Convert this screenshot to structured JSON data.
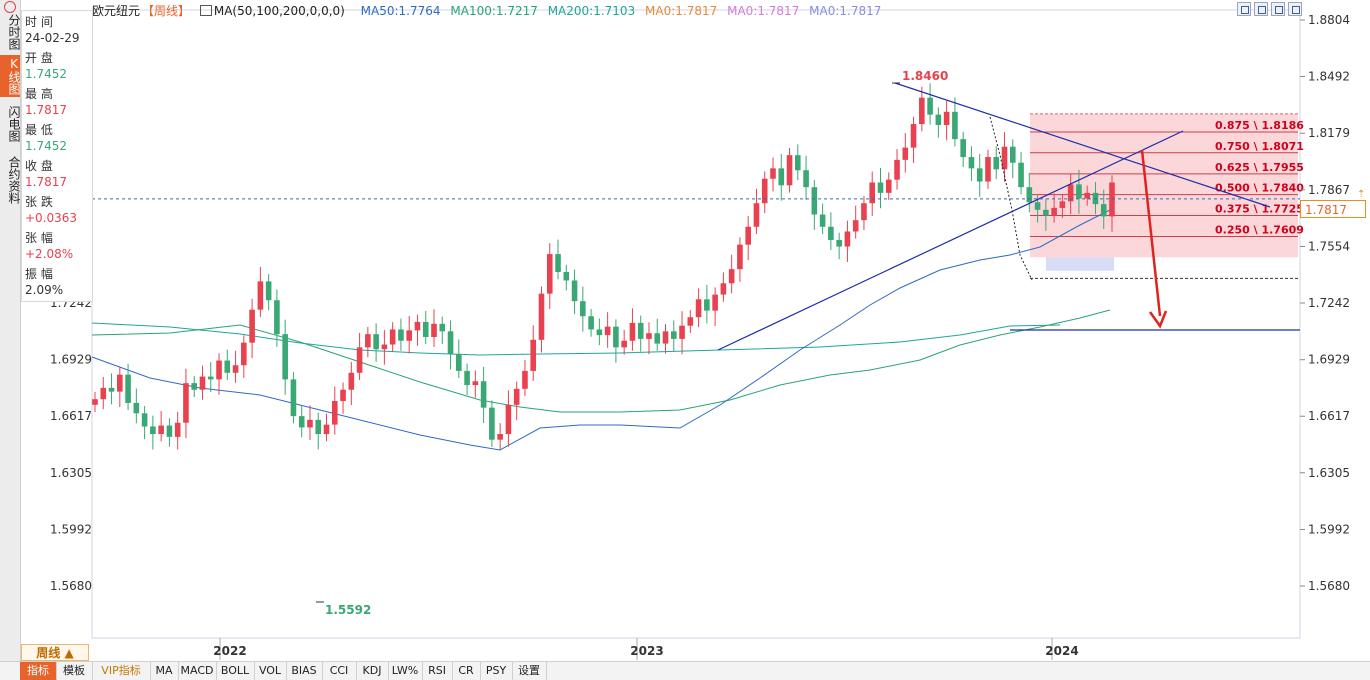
{
  "sidebar": {
    "tabs": [
      {
        "label": "分时图",
        "active": false
      },
      {
        "label": "K线图",
        "active": true
      },
      {
        "label": "闪电图",
        "active": false
      },
      {
        "label": "合约资料",
        "active": false
      }
    ]
  },
  "info_panel": {
    "time_label": "时 间",
    "time_value": "24-02-29",
    "open_label": "开 盘",
    "open_value": "1.7452",
    "high_label": "最 高",
    "high_value": "1.7817",
    "low_label": "最 低",
    "low_value": "1.7452",
    "close_label": "收 盘",
    "close_value": "1.7817",
    "change_label": "张 跌",
    "change_value": "+0.0363",
    "pct_label": "张 幅",
    "pct_value": "+2.08%",
    "amp_label": "振 幅",
    "amp_value": "2.09%"
  },
  "header": {
    "symbol": "欧元纽元",
    "period_tag": "【周线】",
    "ma_params": "MA(50,100,200,0,0,0)",
    "ma50": "MA50:1.7764",
    "ma100": "MA100:1.7217",
    "ma200": "MA200:1.7103",
    "ma0a": "MA0:1.7817",
    "ma0b": "MA0:1.7817",
    "ma0c": "MA0:1.7817"
  },
  "colors": {
    "up": "#e8414f",
    "down": "#3aa874",
    "ma50": "#2e6bc4",
    "ma100": "#27a575",
    "ma200": "#1fa59b",
    "fib_fill": "#fbc6cb",
    "fib_text": "#d0021b",
    "trend": "#1e2fa8",
    "arrow": "#e0231f"
  },
  "price_axis": [
    "1.8804",
    "1.8492",
    "1.8179",
    "1.7867",
    "1.7554",
    "1.7242",
    "1.6929",
    "1.6617",
    "1.6305",
    "1.5992",
    "1.5680"
  ],
  "left_axis": [
    "1.7242",
    "1.6929",
    "1.6617",
    "1.6305",
    "1.5992",
    "1.5680"
  ],
  "current_price": "1.7817",
  "time_axis": [
    "2022",
    "2023",
    "2024"
  ],
  "annotations": {
    "high": "1.8460",
    "low": "1.5592"
  },
  "fib_levels": [
    "0.875 \\ 1.8186",
    "0.750 \\ 1.8071",
    "0.625 \\ 1.7955",
    "0.500 \\ 1.7840",
    "0.375 \\ 1.7725",
    "0.250 \\ 1.7609"
  ],
  "period_button": "周线 ▲",
  "bottom_tabs": [
    {
      "label": "指标",
      "active": true
    },
    {
      "label": "模板",
      "active": false
    },
    {
      "label": "VIP指标",
      "active": false,
      "vip": true
    },
    {
      "label": "MA",
      "active": false
    },
    {
      "label": "MACD",
      "active": false
    },
    {
      "label": "BOLL",
      "active": false
    },
    {
      "label": "VOL",
      "active": false
    },
    {
      "label": "BIAS",
      "active": false
    },
    {
      "label": "CCI",
      "active": false
    },
    {
      "label": "KDJ",
      "active": false
    },
    {
      "label": "LW%",
      "active": false
    },
    {
      "label": "RSI",
      "active": false
    },
    {
      "label": "CR",
      "active": false
    },
    {
      "label": "PSY",
      "active": false
    },
    {
      "label": "设置",
      "active": false
    }
  ]
}
